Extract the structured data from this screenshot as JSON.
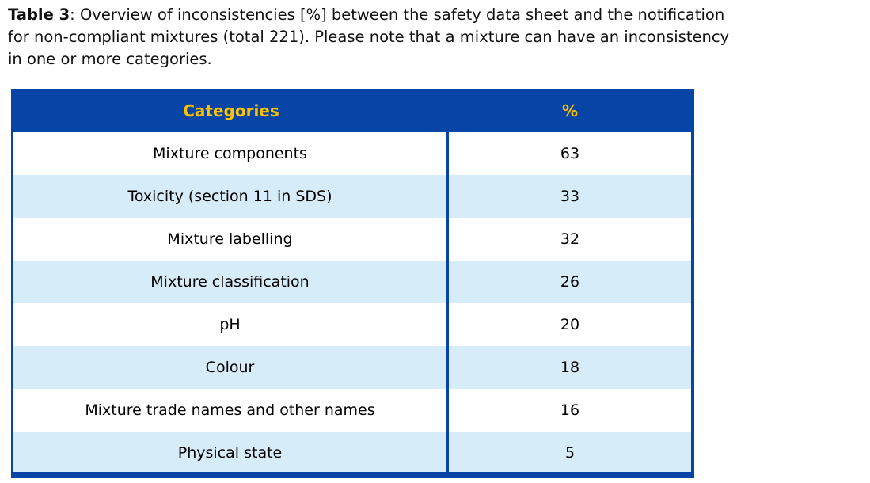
{
  "caption": {
    "label": "Table 3",
    "line1": ": Overview of inconsistencies [%] between the safety data sheet and the notification",
    "line2": "for non-compliant mixtures (total 221). Please note that a mixture can have an inconsistency",
    "line3": "in one or more categories."
  },
  "table": {
    "headers": [
      "Categories",
      "%"
    ],
    "rows": [
      {
        "category": "Mixture components",
        "percent": "63"
      },
      {
        "category": "Toxicity (section 11 in SDS)",
        "percent": "33"
      },
      {
        "category": "Mixture labelling",
        "percent": "32"
      },
      {
        "category": "Mixture classification",
        "percent": "26"
      },
      {
        "category": "pH",
        "percent": "20"
      },
      {
        "category": "Colour",
        "percent": "18"
      },
      {
        "category": "Mixture trade names and other names",
        "percent": "16"
      },
      {
        "category": "Physical state",
        "percent": "5"
      }
    ]
  },
  "colors": {
    "header_background": "#0645A6",
    "header_text": "#FFC000",
    "alt_row_background": "#D7ECF9",
    "body_text": "#000000"
  }
}
